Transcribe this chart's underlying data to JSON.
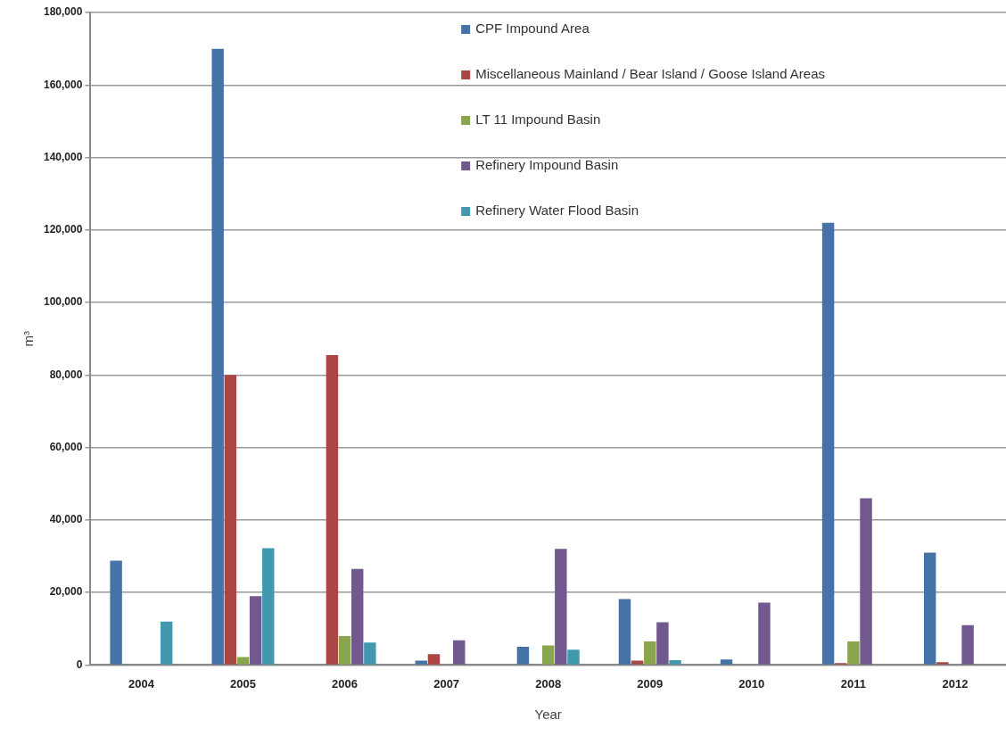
{
  "chart_data": {
    "type": "bar",
    "xlabel": "Year",
    "ylabel": "m³",
    "categories": [
      "2004",
      "2005",
      "2006",
      "2007",
      "2008",
      "2009",
      "2010",
      "2011",
      "2012"
    ],
    "series": [
      {
        "name": "CPF Impound Area",
        "color": "#4572a7",
        "values": [
          28800,
          170000,
          null,
          1200,
          5000,
          18200,
          1500,
          122000,
          31000
        ]
      },
      {
        "name": "Miscellaneous Mainland / Bear Island / Goose Island Areas",
        "color": "#aa4643",
        "values": [
          null,
          80000,
          85500,
          3000,
          null,
          1200,
          null,
          500,
          800
        ]
      },
      {
        "name": "LT 11 Impound Basin",
        "color": "#89a54e",
        "values": [
          null,
          2200,
          8000,
          null,
          5400,
          6500,
          null,
          6500,
          null
        ]
      },
      {
        "name": "Refinery Impound Basin",
        "color": "#71588f",
        "values": [
          null,
          19000,
          26500,
          6800,
          32000,
          11800,
          17200,
          46000,
          11000
        ]
      },
      {
        "name": "Refinery Water Flood Basin",
        "color": "#4198af",
        "values": [
          12000,
          32200,
          6200,
          null,
          4200,
          1300,
          null,
          null,
          null
        ]
      }
    ],
    "ylim": [
      0,
      180000
    ],
    "yticks": [
      0,
      {
        "value": 20000,
        "label": "20,000"
      },
      {
        "value": 40000,
        "label": "40,000"
      },
      {
        "value": 60000,
        "label": "60,000"
      },
      {
        "value": 80000,
        "label": "80,000"
      },
      {
        "value": 100000,
        "label": "100,000"
      },
      {
        "value": 120000,
        "label": "120,000"
      },
      {
        "value": 140000,
        "label": "140,000"
      },
      {
        "value": 160000,
        "label": "160,000"
      },
      {
        "value": 180000,
        "label": "180,000"
      }
    ],
    "grid": "y",
    "legend": "top"
  }
}
